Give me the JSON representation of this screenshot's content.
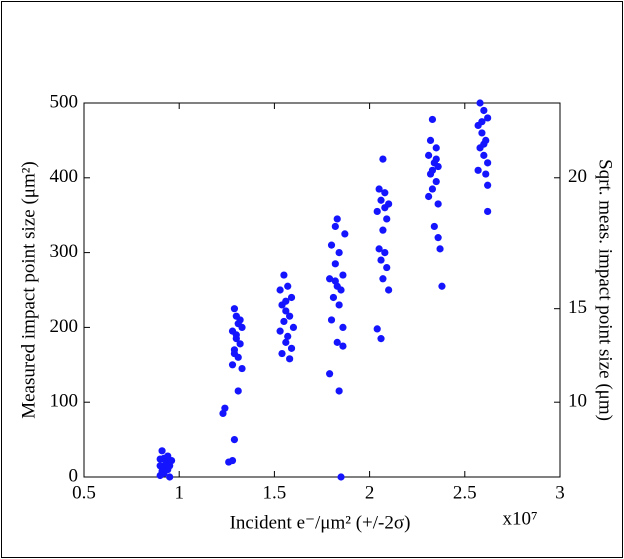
{
  "chart_data": {
    "type": "scatter",
    "x_label": "Incident e⁻/μm² (+/-2σ)",
    "y_label": "Measured impact point size (μm²)",
    "y2_label": "Sqrt. meas. impact point size (μm)",
    "x_offset_label": "x10⁷",
    "xlim": [
      0.5,
      3
    ],
    "xticks": [
      0.5,
      1,
      1.5,
      2,
      2.5,
      3
    ],
    "ylim": [
      0,
      500
    ],
    "yticks": [
      0,
      100,
      200,
      300,
      400,
      500
    ],
    "y2lim": [
      0,
      22.36
    ],
    "y2ticks": [
      10,
      15,
      20
    ],
    "y2scale": "sqrt",
    "color": "#1414ff",
    "x": [
      0.91,
      0.92,
      0.93,
      0.9,
      0.94,
      0.92,
      0.95,
      0.9,
      0.93,
      0.96,
      0.91,
      0.94,
      0.92,
      0.95,
      0.9,
      1.23,
      1.24,
      1.26,
      1.28,
      1.29,
      1.31,
      1.29,
      1.3,
      1.31,
      1.33,
      1.28,
      1.3,
      1.32,
      1.29,
      1.31,
      1.28,
      1.33,
      1.3,
      1.32,
      1.29,
      1.55,
      1.57,
      1.53,
      1.59,
      1.54,
      1.56,
      1.58,
      1.55,
      1.6,
      1.53,
      1.57,
      1.56,
      1.59,
      1.54,
      1.58,
      1.56,
      1.83,
      1.82,
      1.87,
      1.8,
      1.84,
      1.82,
      1.86,
      1.79,
      1.83,
      1.85,
      1.81,
      1.84,
      1.8,
      1.86,
      1.83,
      1.86,
      1.79,
      1.84,
      1.85,
      1.82,
      2.07,
      2.05,
      2.08,
      2.06,
      2.1,
      2.04,
      2.09,
      2.07,
      2.05,
      2.08,
      2.06,
      2.09,
      2.07,
      2.1,
      2.04,
      2.06,
      2.08,
      2.33,
      2.32,
      2.35,
      2.31,
      2.34,
      2.36,
      2.32,
      2.35,
      2.33,
      2.31,
      2.36,
      2.34,
      2.36,
      2.37,
      2.38,
      2.33,
      2.35,
      2.58,
      2.6,
      2.62,
      2.57,
      2.59,
      2.61,
      2.58,
      2.6,
      2.62,
      2.57,
      2.61,
      2.62,
      2.6,
      2.62,
      2.59
    ],
    "values": [
      35,
      25,
      20,
      15,
      10,
      5,
      0,
      2,
      18,
      22,
      8,
      28,
      12,
      15,
      24,
      85,
      92,
      20,
      22,
      50,
      115,
      225,
      215,
      205,
      200,
      195,
      185,
      178,
      170,
      160,
      150,
      145,
      190,
      210,
      165,
      270,
      255,
      250,
      240,
      230,
      222,
      215,
      208,
      200,
      195,
      188,
      180,
      172,
      165,
      158,
      235,
      345,
      335,
      325,
      310,
      300,
      285,
      270,
      265,
      255,
      250,
      240,
      230,
      210,
      200,
      180,
      175,
      138,
      115,
      0,
      262,
      425,
      385,
      380,
      370,
      365,
      355,
      345,
      330,
      305,
      300,
      290,
      280,
      265,
      250,
      198,
      185,
      360,
      478,
      450,
      440,
      430,
      420,
      415,
      405,
      395,
      385,
      375,
      365,
      335,
      320,
      305,
      255,
      410,
      425,
      500,
      490,
      480,
      470,
      460,
      450,
      440,
      430,
      420,
      410,
      405,
      390,
      445,
      355,
      475
    ]
  }
}
